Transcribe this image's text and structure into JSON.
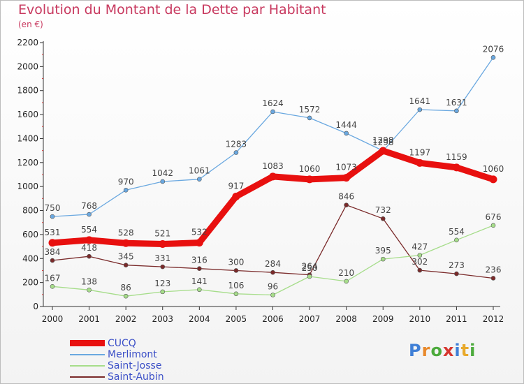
{
  "title": "Evolution du Montant de la Dette par Habitant",
  "subtitle": "(en €)",
  "logo": {
    "letters": [
      {
        "ch": "P",
        "color": "#3f7fd6"
      },
      {
        "ch": "r",
        "color": "#e8892b"
      },
      {
        "ch": "o",
        "color": "#4caa3c"
      },
      {
        "ch": "x",
        "color": "#d6362f"
      },
      {
        "ch": "i",
        "color": "#3f7fd6"
      },
      {
        "ch": "t",
        "color": "#e8a92b"
      },
      {
        "ch": "i",
        "color": "#4caa3c"
      }
    ]
  },
  "chart_data": {
    "type": "line",
    "x": [
      "2000",
      "2001",
      "2002",
      "2003",
      "2004",
      "2005",
      "2006",
      "2007",
      "2008",
      "2009",
      "2010",
      "2011",
      "2012"
    ],
    "ylim": [
      0,
      2200
    ],
    "yticks": [
      "0",
      "200",
      "400",
      "600",
      "800",
      "1000",
      "1200",
      "1400",
      "1600",
      "1800",
      "2000",
      "2200"
    ],
    "legend_position": "bottom-left",
    "series": [
      {
        "name": "CUCQ",
        "color": "#e8100f",
        "values": [
          531,
          554,
          528,
          521,
          532,
          917,
          1083,
          1060,
          1073,
          1298,
          1197,
          1159,
          1060
        ]
      },
      {
        "name": "Merlimont",
        "color": "#6aa8e0",
        "values": [
          750,
          768,
          970,
          1042,
          1061,
          1283,
          1624,
          1572,
          1444,
          1298,
          1641,
          1631,
          2076
        ]
      },
      {
        "name": "Saint-Josse",
        "color": "#a6dd8a",
        "values": [
          167,
          138,
          86,
          123,
          141,
          106,
          96,
          250,
          210,
          395,
          427,
          554,
          676
        ]
      },
      {
        "name": "Saint-Aubin",
        "color": "#7a2a2a",
        "values": [
          384,
          418,
          345,
          331,
          316,
          300,
          284,
          264,
          846,
          732,
          302,
          273,
          236
        ]
      }
    ]
  }
}
